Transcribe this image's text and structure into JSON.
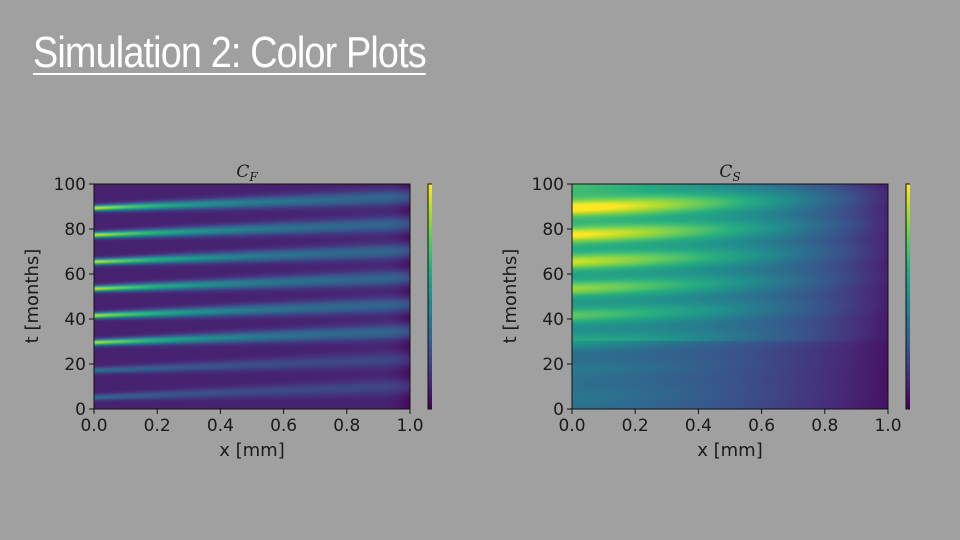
{
  "slide": {
    "title": "Simulation 2: Color Plots"
  },
  "colors": {
    "background": "#a0a0a0",
    "title": "#ffffff",
    "colormap": "viridis"
  },
  "chart_data": [
    {
      "type": "heatmap",
      "title_main": "C",
      "title_sub": "F",
      "xlabel": "x [mm]",
      "ylabel": "t [months]",
      "xlim": [
        0.0,
        1.0
      ],
      "ylim": [
        0,
        100
      ],
      "xticks": [
        "0.0",
        "0.2",
        "0.4",
        "0.6",
        "0.8",
        "1.0"
      ],
      "yticks": [
        "0",
        "20",
        "40",
        "60",
        "80",
        "100"
      ],
      "colorbar": {
        "min": 0,
        "max": 10,
        "ticks": [
          "0",
          "2",
          "4",
          "6",
          "8",
          "10"
        ]
      },
      "background_value": 1.0,
      "bands": [
        {
          "t_start": 5,
          "slope": 5,
          "peak": 3.5
        },
        {
          "t_start": 17,
          "slope": 5,
          "peak": 3.8
        },
        {
          "t_start": 29.5,
          "slope": 5,
          "peak": 9.2
        },
        {
          "t_start": 41.5,
          "slope": 5,
          "peak": 9.2
        },
        {
          "t_start": 53.5,
          "slope": 5,
          "peak": 9.3
        },
        {
          "t_start": 65.5,
          "slope": 5,
          "peak": 9.3
        },
        {
          "t_start": 77.5,
          "slope": 5,
          "peak": 9.4
        },
        {
          "t_start": 89.5,
          "slope": 5,
          "peak": 9.5
        }
      ]
    },
    {
      "type": "heatmap",
      "title_main": "C",
      "title_sub": "S",
      "xlabel": "x [mm]",
      "ylabel": "t [months]",
      "xlim": [
        0.0,
        1.0
      ],
      "ylim": [
        0,
        100
      ],
      "xticks": [
        "0.0",
        "0.2",
        "0.4",
        "0.6",
        "0.8",
        "1.0"
      ],
      "yticks": [
        "0",
        "20",
        "40",
        "60",
        "80",
        "100"
      ],
      "colorbar": {
        "min": 1.0,
        "max": 5.8,
        "ticks": [
          "2",
          "3",
          "4",
          "5"
        ],
        "tick_values": [
          2,
          3,
          4,
          5
        ]
      },
      "bands": [
        {
          "t_start": 5,
          "slope": 5,
          "peak": 3.2
        },
        {
          "t_start": 17,
          "slope": 5,
          "peak": 3.3
        },
        {
          "t_start": 29.5,
          "slope": 5,
          "peak": 4.0
        },
        {
          "t_start": 41.5,
          "slope": 5,
          "peak": 4.5
        },
        {
          "t_start": 53.5,
          "slope": 5,
          "peak": 4.9
        },
        {
          "t_start": 65.5,
          "slope": 5,
          "peak": 5.2
        },
        {
          "t_start": 77.5,
          "slope": 5,
          "peak": 5.5
        },
        {
          "t_start": 89.5,
          "slope": 5,
          "peak": 5.7
        }
      ]
    }
  ]
}
